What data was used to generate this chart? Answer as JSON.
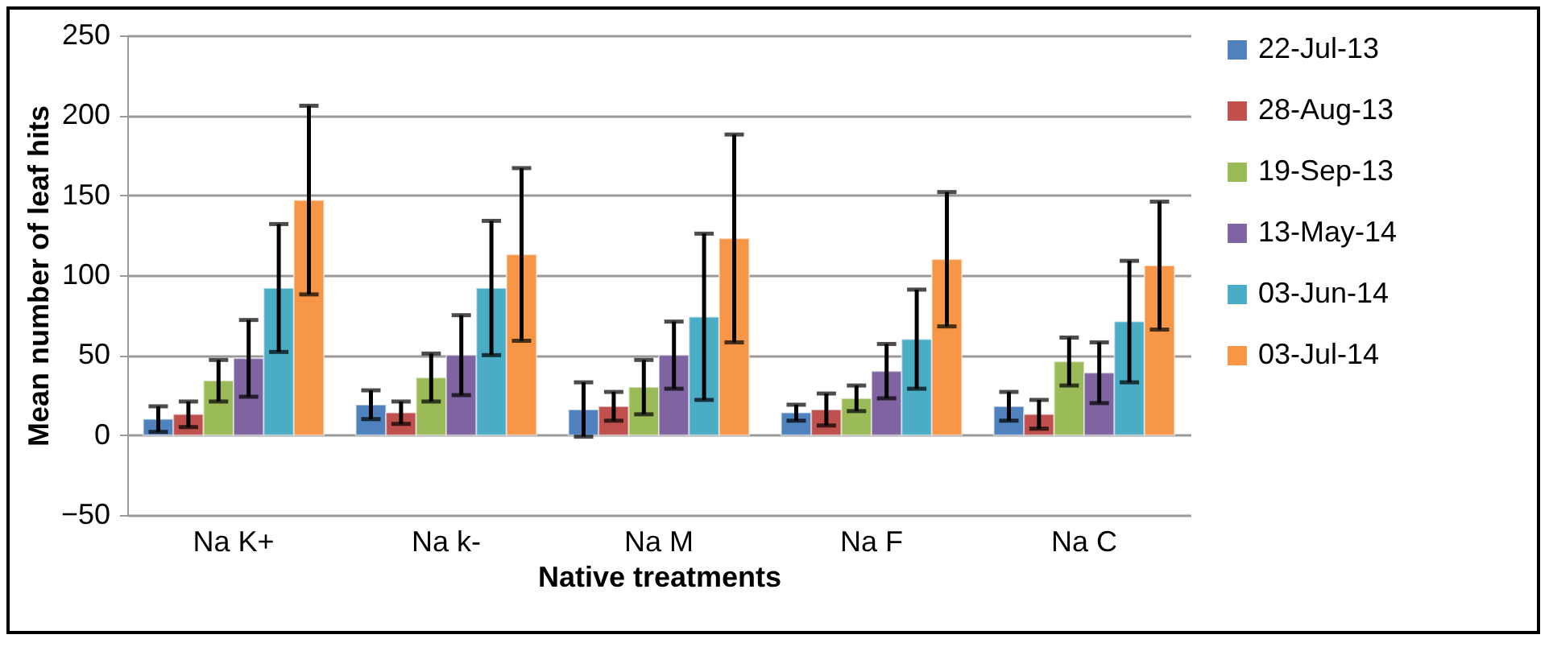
{
  "chart_data": {
    "type": "bar",
    "xlabel": "Native treatments",
    "ylabel": "Mean number of leaf hits",
    "categories": [
      "Na K+",
      "Na k-",
      "Na M",
      "Na F",
      "Na C"
    ],
    "series": [
      {
        "name": "22-Jul-13",
        "color": "#4f81bd",
        "values": [
          10,
          19,
          16,
          14,
          18
        ],
        "errors": [
          8,
          9,
          17,
          5,
          9
        ]
      },
      {
        "name": "28-Aug-13",
        "color": "#c0504d",
        "values": [
          13,
          14,
          18,
          16,
          13
        ],
        "errors": [
          8,
          7,
          9,
          10,
          9
        ]
      },
      {
        "name": "19-Sep-13",
        "color": "#9bbb59",
        "values": [
          34,
          36,
          30,
          23,
          46
        ],
        "errors": [
          13,
          15,
          17,
          8,
          15
        ]
      },
      {
        "name": "13-May-14",
        "color": "#8064a2",
        "values": [
          48,
          50,
          50,
          40,
          39
        ],
        "errors": [
          24,
          25,
          21,
          17,
          19
        ]
      },
      {
        "name": "03-Jun-14",
        "color": "#4bacc6",
        "values": [
          92,
          92,
          74,
          60,
          71
        ],
        "errors": [
          40,
          42,
          52,
          31,
          38
        ]
      },
      {
        "name": "03-Jul-14",
        "color": "#f79646",
        "values": [
          147,
          113,
          123,
          110,
          106
        ],
        "errors": [
          59,
          54,
          65,
          42,
          40
        ]
      }
    ],
    "ylim": [
      -50,
      250
    ],
    "yticks": [
      -50,
      0,
      50,
      100,
      150,
      200,
      250
    ],
    "grid": "y",
    "legend": "right"
  }
}
